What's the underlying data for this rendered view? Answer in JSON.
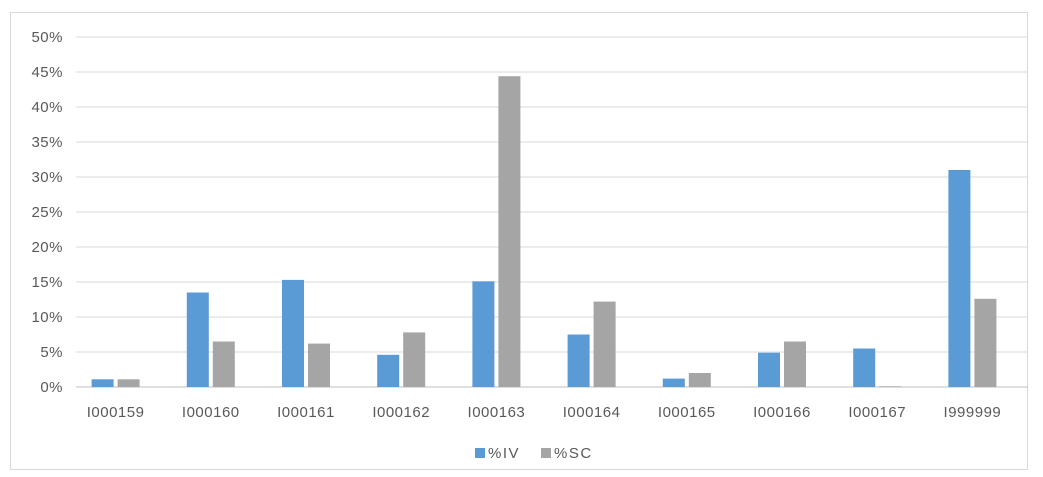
{
  "chart_data": {
    "type": "bar",
    "categories": [
      "I000159",
      "I000160",
      "I000161",
      "I000162",
      "I000163",
      "I000164",
      "I000165",
      "I000166",
      "I000167",
      "I999999"
    ],
    "series": [
      {
        "name": "%IV",
        "values": [
          1.1,
          13.5,
          15.3,
          4.6,
          15.1,
          7.5,
          1.2,
          4.9,
          5.5,
          31.0
        ],
        "color": "#5b9bd5"
      },
      {
        "name": "%SC",
        "values": [
          1.1,
          6.5,
          6.2,
          7.8,
          44.4,
          12.2,
          2.0,
          6.5,
          0.1,
          12.6
        ],
        "color": "#a5a5a5"
      }
    ],
    "ylim": [
      0,
      50
    ],
    "yticks": [
      "0%",
      "5%",
      "10%",
      "15%",
      "20%",
      "25%",
      "30%",
      "35%",
      "40%",
      "45%",
      "50%"
    ],
    "grid": true,
    "legend_position": "bottom",
    "title": "",
    "xlabel": "",
    "ylabel": ""
  }
}
